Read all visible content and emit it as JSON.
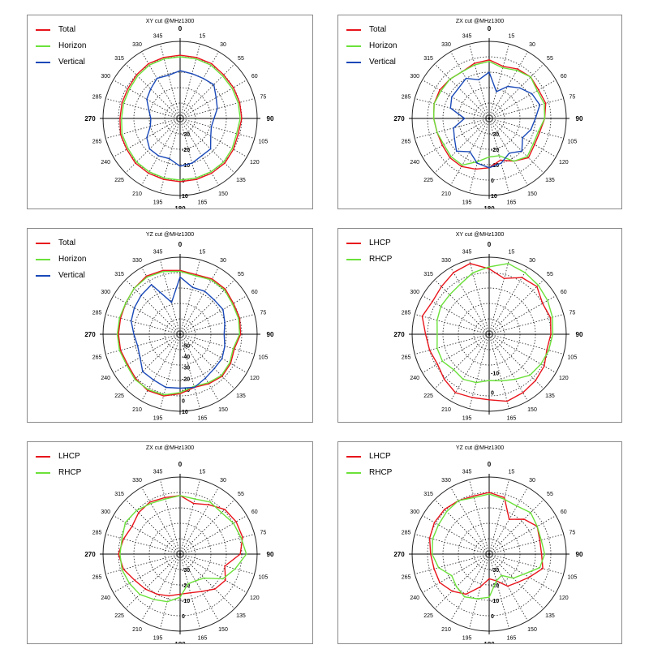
{
  "chart_data": [
    {
      "type": "polar-line",
      "title": "XY cut @MHz1300",
      "angle_labels": [
        "0",
        "15",
        "30",
        "55",
        "60",
        "75",
        "90",
        "105",
        "120",
        "135",
        "150",
        "165",
        "180",
        "195",
        "210",
        "225",
        "240",
        "265",
        "270",
        "285",
        "300",
        "315",
        "330",
        "345"
      ],
      "radial_labels": [
        "-30",
        "-20",
        "-10",
        "0",
        "10"
      ],
      "rlim": [
        -40,
        10
      ],
      "series": [
        {
          "name": "Total",
          "color": "#e8141b",
          "values": [
            1,
            1,
            1,
            0,
            0,
            0,
            0,
            -1,
            0,
            1,
            1,
            1,
            1,
            1,
            1,
            1,
            0,
            0,
            -1,
            -1,
            -1,
            0,
            1,
            1
          ]
        },
        {
          "name": "Horizon",
          "color": "#6be13a",
          "values": [
            0,
            0,
            0,
            -1,
            -1,
            -1,
            -1,
            -2,
            -1,
            0,
            0,
            0,
            0,
            0,
            0,
            0,
            -1,
            -1,
            -2,
            -2,
            -2,
            -1,
            0,
            0
          ]
        },
        {
          "name": "Vertical",
          "color": "#1a49b8",
          "values": [
            -9,
            -10,
            -10,
            -9,
            -13,
            -15,
            -18,
            -19,
            -17,
            -12,
            -12,
            -10,
            -9,
            -13,
            -12,
            -12,
            -15,
            -20,
            -21,
            -19,
            -15,
            -13,
            -10,
            -11
          ]
        }
      ]
    },
    {
      "type": "polar-line",
      "title": "ZX cut @MHz1300",
      "angle_labels": [
        "0",
        "15",
        "30",
        "55",
        "60",
        "75",
        "90",
        "105",
        "120",
        "135",
        "150",
        "165",
        "180",
        "195",
        "210",
        "225",
        "240",
        "265",
        "270",
        "285",
        "300",
        "315",
        "330",
        "345"
      ],
      "radial_labels": [
        "-30",
        "-20",
        "-10",
        "0",
        "10"
      ],
      "rlim": [
        -40,
        10
      ],
      "series": [
        {
          "name": "Total",
          "color": "#e8141b",
          "values": [
            -2,
            -5,
            -3,
            -2,
            -3,
            -2,
            -4,
            -6,
            -6,
            -4,
            -8,
            -12,
            -8,
            -6,
            -4,
            -4,
            -5,
            -5,
            -4,
            -3,
            -3,
            -4,
            -5,
            -3
          ]
        },
        {
          "name": "Horizon",
          "color": "#6be13a",
          "values": [
            -3,
            -6,
            -4,
            -2,
            -4,
            -3,
            -4,
            -7,
            -7,
            -5,
            -8,
            -15,
            -15,
            -11,
            -5,
            -5,
            -6,
            -5,
            -4,
            -3,
            -4,
            -4,
            -5,
            -4
          ]
        },
        {
          "name": "Vertical",
          "color": "#1a49b8",
          "values": [
            -10,
            -22,
            -16,
            -12,
            -8,
            -6,
            -10,
            -12,
            -15,
            -10,
            -14,
            -10,
            -8,
            -10,
            -15,
            -10,
            -14,
            -16,
            -24,
            -14,
            -12,
            -12,
            -10,
            -14
          ]
        }
      ]
    },
    {
      "type": "polar-line",
      "title": "YZ cut @MHz1300",
      "angle_labels": [
        "0",
        "15",
        "30",
        "55",
        "60",
        "75",
        "90",
        "105",
        "120",
        "135",
        "150",
        "165",
        "180",
        "195",
        "210",
        "225",
        "240",
        "265",
        "270",
        "285",
        "300",
        "315",
        "330",
        "345"
      ],
      "radial_labels": [
        "-50",
        "-40",
        "-30",
        "-20",
        "-10",
        "0",
        "10"
      ],
      "rlim": [
        -60,
        10
      ],
      "series": [
        {
          "name": "Total",
          "color": "#e8141b",
          "values": [
            -2,
            -4,
            -2,
            -2,
            -4,
            -4,
            -5,
            -9,
            -7,
            -6,
            -8,
            -10,
            -6,
            -2,
            -1,
            -3,
            -5,
            -4,
            -4,
            -4,
            -3,
            -1,
            1,
            0
          ]
        },
        {
          "name": "Horizon",
          "color": "#6be13a",
          "values": [
            -3,
            -5,
            -3,
            -3,
            -5,
            -5,
            -6,
            -10,
            -8,
            -7,
            -9,
            -11,
            -7,
            -3,
            -2,
            -2,
            -4,
            -3,
            -3,
            -3,
            -3,
            -1,
            0,
            -1
          ]
        },
        {
          "name": "Vertical",
          "color": "#1a49b8",
          "values": [
            -8,
            -16,
            -15,
            -16,
            -15,
            -18,
            -20,
            -18,
            -16,
            -16,
            -14,
            -10,
            -11,
            -10,
            -12,
            -12,
            -18,
            -20,
            -18,
            -14,
            -12,
            -10,
            -8,
            -30
          ]
        }
      ]
    },
    {
      "type": "polar-line",
      "title": "XY cut @MHz1300",
      "angle_labels": [
        "0",
        "15",
        "30",
        "55",
        "60",
        "75",
        "90",
        "105",
        "120",
        "135",
        "150",
        "165",
        "180",
        "195",
        "210",
        "225",
        "240",
        "265",
        "270",
        "285",
        "300",
        "315",
        "330",
        "345"
      ],
      "radial_labels": [
        "-10",
        "0"
      ],
      "rlim": [
        -30,
        10
      ],
      "series": [
        {
          "name": "LHCP",
          "color": "#e8141b",
          "values": [
            4,
            0,
            4,
            5,
            2,
            3,
            2,
            1,
            3,
            4,
            5,
            6,
            4,
            4,
            5,
            3,
            1,
            2,
            3,
            6,
            4,
            5,
            7,
            8
          ]
        },
        {
          "name": "RHCP",
          "color": "#6be13a",
          "values": [
            5,
            8,
            7,
            6,
            5,
            4,
            3,
            2,
            1,
            0,
            -3,
            -5,
            -6,
            -4,
            -3,
            -4,
            -2,
            -2,
            -3,
            -2,
            -1,
            -1,
            0,
            3
          ]
        }
      ]
    },
    {
      "type": "polar-line",
      "title": "ZX cut @MHz1300",
      "angle_labels": [
        "0",
        "15",
        "30",
        "55",
        "60",
        "75",
        "90",
        "105",
        "120",
        "135",
        "150",
        "165",
        "180",
        "195",
        "210",
        "225",
        "240",
        "265",
        "270",
        "285",
        "300",
        "315",
        "330",
        "345"
      ],
      "radial_labels": [
        "-30",
        "-20",
        "-10",
        "0"
      ],
      "rlim": [
        -40,
        10
      ],
      "series": [
        {
          "name": "LHCP",
          "color": "#e8141b",
          "values": [
            -2,
            -6,
            -3,
            1,
            2,
            2,
            -1,
            -10,
            -6,
            -8,
            -12,
            -14,
            -14,
            -12,
            -10,
            -8,
            -6,
            -2,
            0,
            -2,
            -4,
            -2,
            -1,
            -2
          ]
        },
        {
          "name": "RHCP",
          "color": "#6be13a",
          "values": [
            -2,
            -3,
            -1,
            -2,
            0,
            1,
            3,
            -3,
            -8,
            -18,
            -20,
            -20,
            -12,
            -8,
            -6,
            -3,
            -2,
            -1,
            -1,
            -1,
            1,
            0,
            -2,
            -3
          ]
        }
      ]
    },
    {
      "type": "polar-line",
      "title": "YZ cut @MHz1300",
      "angle_labels": [
        "0",
        "15",
        "30",
        "55",
        "60",
        "75",
        "90",
        "105",
        "120",
        "135",
        "150",
        "165",
        "180",
        "195",
        "210",
        "225",
        "240",
        "265",
        "270",
        "285",
        "300",
        "315",
        "330",
        "345"
      ],
      "radial_labels": [
        "-30",
        "-20",
        "-10",
        "0"
      ],
      "rlim": [
        -40,
        10
      ],
      "series": [
        {
          "name": "LHCP",
          "color": "#e8141b",
          "values": [
            0,
            -2,
            -14,
            -8,
            -4,
            -6,
            -6,
            -4,
            -10,
            -14,
            -16,
            -22,
            -24,
            -18,
            -10,
            -6,
            -3,
            -3,
            -2,
            0,
            1,
            1,
            0,
            -1
          ]
        },
        {
          "name": "RHCP",
          "color": "#6be13a",
          "values": [
            -1,
            -3,
            -4,
            -2,
            -4,
            -5,
            -4,
            -6,
            -14,
            -18,
            -24,
            -22,
            -12,
            -10,
            -8,
            -10,
            -12,
            -6,
            -3,
            -2,
            -2,
            -1,
            0,
            -2
          ]
        }
      ]
    }
  ]
}
